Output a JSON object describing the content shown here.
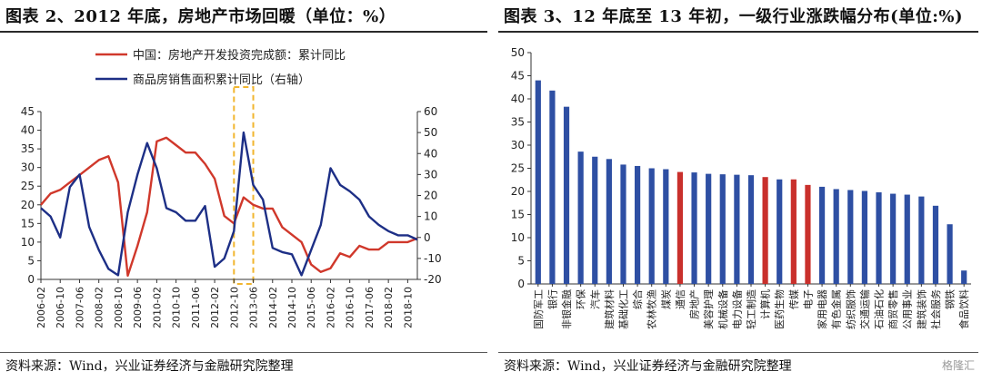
{
  "left_panel": {
    "title": "图表 2、2012 年底，房地产市场回暖（单位：%）",
    "source": "资料来源：Wind，兴业证券经济与金融研究院整理"
  },
  "right_panel": {
    "title": "图表 3、12 年底至 13 年初，一级行业涨跌幅分布(单位:%)",
    "source": "资料来源：Wind，兴业证券经济与金融研究院整理",
    "watermark": "格隆汇"
  },
  "chart_data": [
    {
      "type": "line",
      "title": "",
      "legend_position": "top-right",
      "x_tick_labels": [
        "2006-02",
        "2006-10",
        "2007-06",
        "2008-02",
        "2008-10",
        "2009-06",
        "2010-02",
        "2010-10",
        "2011-06",
        "2012-02",
        "2012-10",
        "2013-06",
        "2014-02",
        "2014-10",
        "2015-06",
        "2016-02",
        "2016-10",
        "2017-06",
        "2018-02",
        "2018-10"
      ],
      "ylim_left": [
        0,
        45
      ],
      "ylim_right": [
        -20,
        60
      ],
      "left_ticks": [
        0,
        5,
        10,
        15,
        20,
        25,
        30,
        35,
        40,
        45
      ],
      "right_ticks": [
        -20,
        -10,
        0,
        10,
        20,
        30,
        40,
        50,
        60
      ],
      "grid": false,
      "highlight_region": {
        "from": "2012-10",
        "to": "2013-06"
      },
      "series": [
        {
          "name": "中国：房地产开发投资完成额：累计同比",
          "axis": "left",
          "color": "#d0382b",
          "x": [
            "2006-02",
            "2006-06",
            "2006-10",
            "2007-02",
            "2007-06",
            "2007-10",
            "2008-02",
            "2008-06",
            "2008-10",
            "2009-02",
            "2009-06",
            "2009-10",
            "2010-02",
            "2010-06",
            "2010-10",
            "2011-02",
            "2011-06",
            "2011-10",
            "2012-02",
            "2012-06",
            "2012-10",
            "2013-02",
            "2013-06",
            "2013-10",
            "2014-02",
            "2014-06",
            "2014-10",
            "2015-02",
            "2015-06",
            "2015-10",
            "2016-02",
            "2016-06",
            "2016-10",
            "2017-02",
            "2017-06",
            "2017-10",
            "2018-02",
            "2018-06",
            "2018-10",
            "2019-02"
          ],
          "values": [
            20,
            23,
            24,
            26,
            28,
            30,
            32,
            33,
            26,
            1,
            9,
            18,
            37,
            38,
            36,
            34,
            34,
            31,
            27,
            17,
            15,
            22,
            20,
            19,
            19,
            14,
            12,
            10,
            4,
            2,
            3,
            7,
            6,
            9,
            8,
            8,
            10,
            10,
            10,
            11
          ]
        },
        {
          "name": "商品房销售面积累计同比（右轴）",
          "axis": "right",
          "color": "#1d2f86",
          "x": [
            "2006-02",
            "2006-06",
            "2006-10",
            "2007-02",
            "2007-06",
            "2007-10",
            "2008-02",
            "2008-06",
            "2008-10",
            "2009-02",
            "2009-06",
            "2009-10",
            "2010-02",
            "2010-06",
            "2010-10",
            "2011-02",
            "2011-06",
            "2011-10",
            "2012-02",
            "2012-06",
            "2012-10",
            "2013-02",
            "2013-06",
            "2013-10",
            "2014-02",
            "2014-06",
            "2014-10",
            "2015-02",
            "2015-06",
            "2015-10",
            "2016-02",
            "2016-06",
            "2016-10",
            "2017-02",
            "2017-06",
            "2017-10",
            "2018-02",
            "2018-06",
            "2018-10",
            "2019-02"
          ],
          "values": [
            14,
            10,
            0,
            24,
            30,
            5,
            -6,
            -15,
            -18,
            12,
            30,
            45,
            33,
            14,
            12,
            8,
            8,
            15,
            -14,
            -10,
            3,
            50,
            25,
            18,
            -5,
            -7,
            -8,
            -18,
            -6,
            6,
            33,
            25,
            22,
            18,
            10,
            6,
            3,
            1,
            1,
            -1
          ]
        }
      ]
    },
    {
      "type": "bar",
      "title": "",
      "ylim": [
        0,
        50
      ],
      "yticks": [
        0,
        5,
        10,
        15,
        20,
        25,
        30,
        35,
        40,
        45,
        50
      ],
      "grid": false,
      "bar_color": "#2e4fa3",
      "highlight_color": "#c9302c",
      "categories": [
        "国防军工",
        "银行",
        "非银金融",
        "环保",
        "汽车",
        "建筑材料",
        "基础化工",
        "综合",
        "农林牧渔",
        "煤炭",
        "通信",
        "房地产",
        "美容护理",
        "机械设备",
        "电力设备",
        "轻工制造",
        "计算机",
        "医药生物",
        "传媒",
        "电子",
        "家用电器",
        "有色金属",
        "纺织服饰",
        "交通运输",
        "石油石化",
        "商贸零售",
        "公用事业",
        "建筑装饰",
        "社会服务",
        "钢铁",
        "食品饮料"
      ],
      "values": [
        44,
        41.8,
        38.3,
        28.6,
        27.5,
        27,
        25.8,
        25.5,
        25,
        24.8,
        24.2,
        24.1,
        23.8,
        23.7,
        23.6,
        23.5,
        23.1,
        22.6,
        22.6,
        21.4,
        21,
        20.5,
        20.3,
        20.1,
        19.8,
        19.5,
        19.3,
        18.9,
        16.9,
        12.9,
        2.9
      ],
      "highlighted": [
        "通信",
        "计算机",
        "传媒",
        "电子"
      ]
    }
  ]
}
